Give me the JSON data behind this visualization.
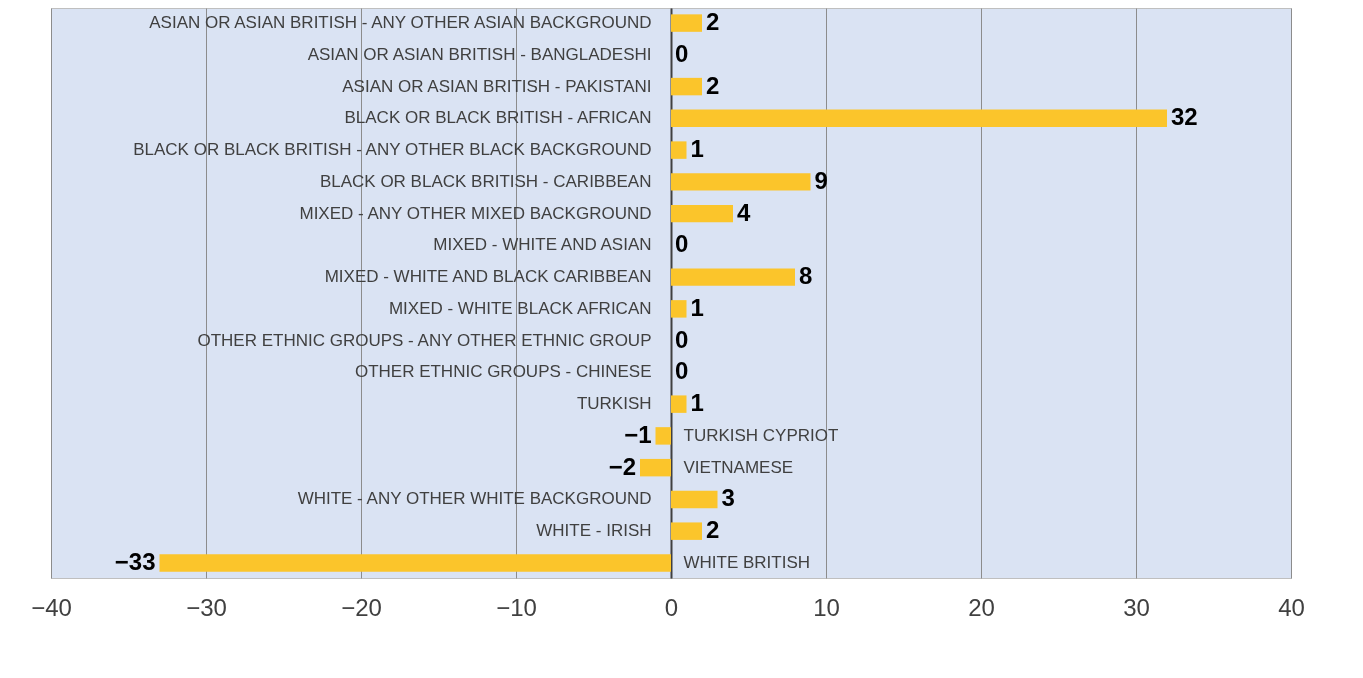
{
  "chart_data": {
    "type": "bar",
    "orientation": "horizontal",
    "categories": [
      "ASIAN OR ASIAN BRITISH - ANY OTHER ASIAN BACKGROUND",
      "ASIAN OR ASIAN BRITISH - BANGLADESHI",
      "ASIAN OR ASIAN BRITISH - PAKISTANI",
      "BLACK OR BLACK BRITISH - AFRICAN",
      "BLACK OR BLACK BRITISH - ANY OTHER BLACK BACKGROUND",
      "BLACK OR BLACK BRITISH - CARIBBEAN",
      "MIXED - ANY OTHER MIXED BACKGROUND",
      "MIXED - WHITE AND ASIAN",
      "MIXED - WHITE AND BLACK CARIBBEAN",
      "MIXED - WHITE BLACK AFRICAN",
      "OTHER ETHNIC GROUPS - ANY OTHER ETHNIC GROUP",
      "OTHER ETHNIC GROUPS - CHINESE",
      "TURKISH",
      "TURKISH CYPRIOT",
      "VIETNAMESE",
      "WHITE - ANY OTHER WHITE BACKGROUND",
      "WHITE - IRISH",
      "WHITE BRITISH"
    ],
    "values": [
      2,
      0,
      2,
      32,
      1,
      9,
      4,
      0,
      8,
      1,
      0,
      0,
      1,
      -1,
      -2,
      3,
      2,
      -33
    ],
    "color": "#fbc52b",
    "xlim": [
      -40,
      40
    ],
    "xticks": [
      -40,
      -30,
      -20,
      -10,
      0,
      10,
      20,
      30,
      40
    ],
    "grid": "x",
    "data_labels": true
  }
}
